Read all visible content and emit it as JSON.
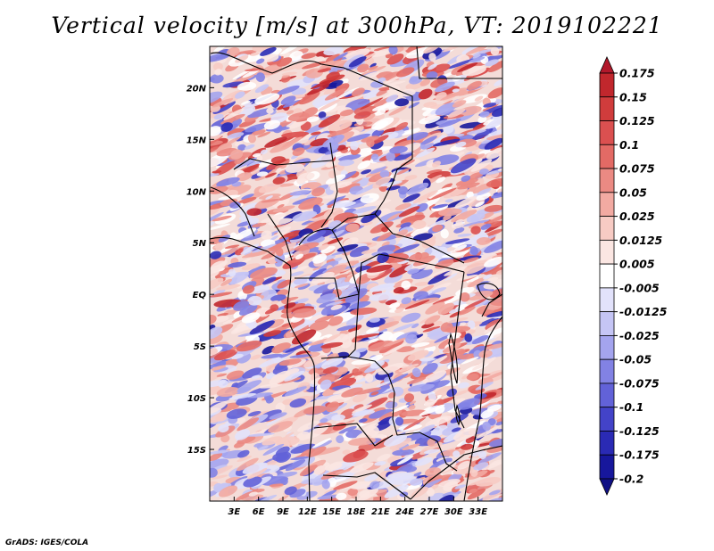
{
  "title": "Vertical velocity [m/s] at 300hPa, VT: 2019102221",
  "credit": "GrADS: IGES/COLA",
  "map": {
    "field": "vertical velocity",
    "units": "m/s",
    "level": "300hPa",
    "valid_time": "2019102221",
    "lon_range": [
      0,
      36
    ],
    "lat_range": [
      -20,
      24
    ],
    "lat_ticks": [
      {
        "value": 20,
        "label": "20N"
      },
      {
        "value": 15,
        "label": "15N"
      },
      {
        "value": 10,
        "label": "10N"
      },
      {
        "value": 5,
        "label": "5N"
      },
      {
        "value": 0,
        "label": "EQ"
      },
      {
        "value": -5,
        "label": "5S"
      },
      {
        "value": -10,
        "label": "10S"
      },
      {
        "value": -15,
        "label": "15S"
      }
    ],
    "lon_ticks": [
      {
        "value": 3,
        "label": "3E"
      },
      {
        "value": 6,
        "label": "6E"
      },
      {
        "value": 9,
        "label": "9E"
      },
      {
        "value": 12,
        "label": "12E"
      },
      {
        "value": 15,
        "label": "15E"
      },
      {
        "value": 18,
        "label": "18E"
      },
      {
        "value": 21,
        "label": "21E"
      },
      {
        "value": 24,
        "label": "24E"
      },
      {
        "value": 27,
        "label": "27E"
      },
      {
        "value": 30,
        "label": "30E"
      },
      {
        "value": 33,
        "label": "33E"
      }
    ]
  },
  "colorbar": {
    "labels": [
      "0.175",
      "0.15",
      "0.125",
      "0.1",
      "0.075",
      "0.05",
      "0.025",
      "0.0125",
      "0.005",
      "-0.005",
      "-0.0125",
      "-0.025",
      "-0.05",
      "-0.075",
      "-0.1",
      "-0.125",
      "-0.175",
      "-0.2"
    ],
    "colors": [
      "#b2182b",
      "#c1272d",
      "#d03c3c",
      "#db5050",
      "#e36a65",
      "#eb8a83",
      "#f2aaa2",
      "#f7cbc4",
      "#fbe6e2",
      "#ffffff",
      "#e2e2fb",
      "#c5c5f5",
      "#a4a4ee",
      "#8282e4",
      "#6262d8",
      "#4343c8",
      "#2a2ab4",
      "#17179c",
      "#101085"
    ]
  }
}
